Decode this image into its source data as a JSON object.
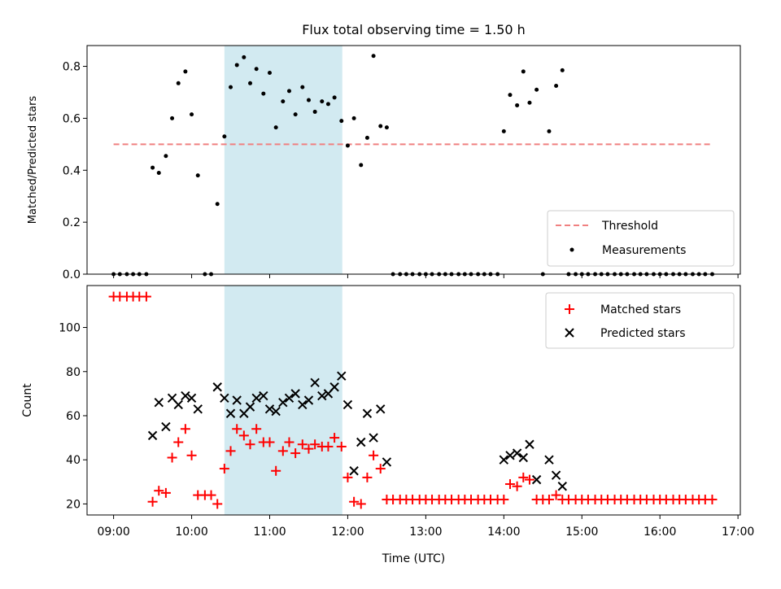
{
  "chart_data": [
    {
      "type": "scatter",
      "title": "Flux total observing time = 1.50 h",
      "xlabel": "",
      "ylabel": "Matched/Predicted stars",
      "xlim": [
        8.66,
        17.03
      ],
      "ylim": [
        0,
        0.88
      ],
      "yticks": [
        0.0,
        0.2,
        0.4,
        0.6,
        0.8
      ],
      "ytick_labels": [
        "0.0",
        "0.2",
        "0.4",
        "0.6",
        "0.8"
      ],
      "shaded_interval": [
        10.42,
        11.93
      ],
      "shade_color": "#add8e6",
      "threshold": {
        "name": "Threshold",
        "value": 0.5,
        "x_range": [
          9.0,
          16.67
        ],
        "color": "#f08080"
      },
      "legend": {
        "position": "lower right",
        "entries": [
          "Threshold",
          "Measurements"
        ]
      },
      "series": [
        {
          "name": "Measurements",
          "marker": "dot",
          "color": "#000000",
          "points": [
            [
              9.0,
              0
            ],
            [
              9.08,
              0
            ],
            [
              9.17,
              0
            ],
            [
              9.25,
              0
            ],
            [
              9.33,
              0
            ],
            [
              9.42,
              0
            ],
            [
              9.5,
              0.41
            ],
            [
              9.58,
              0.39
            ],
            [
              9.67,
              0.455
            ],
            [
              9.75,
              0.6
            ],
            [
              9.83,
              0.735
            ],
            [
              9.92,
              0.78
            ],
            [
              10.0,
              0.615
            ],
            [
              10.08,
              0.38
            ],
            [
              10.17,
              0
            ],
            [
              10.25,
              0
            ],
            [
              10.33,
              0.27
            ],
            [
              10.42,
              0.53
            ],
            [
              10.5,
              0.72
            ],
            [
              10.58,
              0.805
            ],
            [
              10.67,
              0.835
            ],
            [
              10.75,
              0.735
            ],
            [
              10.83,
              0.79
            ],
            [
              10.92,
              0.695
            ],
            [
              11.0,
              0.775
            ],
            [
              11.08,
              0.565
            ],
            [
              11.17,
              0.665
            ],
            [
              11.25,
              0.705
            ],
            [
              11.33,
              0.615
            ],
            [
              11.42,
              0.72
            ],
            [
              11.5,
              0.67
            ],
            [
              11.58,
              0.625
            ],
            [
              11.67,
              0.665
            ],
            [
              11.75,
              0.655
            ],
            [
              11.83,
              0.68
            ],
            [
              11.92,
              0.59
            ],
            [
              12.0,
              0.495
            ],
            [
              12.08,
              0.6
            ],
            [
              12.17,
              0.42
            ],
            [
              12.25,
              0.525
            ],
            [
              12.33,
              0.84
            ],
            [
              12.42,
              0.57
            ],
            [
              12.5,
              0.565
            ],
            [
              12.58,
              0
            ],
            [
              12.67,
              0
            ],
            [
              12.75,
              0
            ],
            [
              12.83,
              0
            ],
            [
              12.92,
              0
            ],
            [
              13.0,
              0
            ],
            [
              13.08,
              0
            ],
            [
              13.17,
              0
            ],
            [
              13.25,
              0
            ],
            [
              13.33,
              0
            ],
            [
              13.42,
              0
            ],
            [
              13.5,
              0
            ],
            [
              13.58,
              0
            ],
            [
              13.67,
              0
            ],
            [
              13.75,
              0
            ],
            [
              13.83,
              0
            ],
            [
              13.92,
              0
            ],
            [
              14.0,
              0.55
            ],
            [
              14.08,
              0.69
            ],
            [
              14.17,
              0.65
            ],
            [
              14.25,
              0.78
            ],
            [
              14.33,
              0.66
            ],
            [
              14.42,
              0.71
            ],
            [
              14.5,
              0
            ],
            [
              14.58,
              0.55
            ],
            [
              14.67,
              0.725
            ],
            [
              14.75,
              0.785
            ],
            [
              14.83,
              0
            ],
            [
              14.92,
              0
            ],
            [
              15.0,
              0
            ],
            [
              15.08,
              0
            ],
            [
              15.17,
              0
            ],
            [
              15.25,
              0
            ],
            [
              15.33,
              0
            ],
            [
              15.42,
              0
            ],
            [
              15.5,
              0
            ],
            [
              15.58,
              0
            ],
            [
              15.67,
              0
            ],
            [
              15.75,
              0
            ],
            [
              15.83,
              0
            ],
            [
              15.92,
              0
            ],
            [
              16.0,
              0
            ],
            [
              16.08,
              0
            ],
            [
              16.17,
              0
            ],
            [
              16.25,
              0
            ],
            [
              16.33,
              0
            ],
            [
              16.42,
              0
            ],
            [
              16.5,
              0
            ],
            [
              16.58,
              0
            ],
            [
              16.67,
              0
            ]
          ]
        }
      ]
    },
    {
      "type": "scatter",
      "title": "",
      "xlabel": "Time (UTC)",
      "ylabel": "Count",
      "xlim": [
        8.66,
        17.03
      ],
      "ylim": [
        15,
        119
      ],
      "xticks": [
        9,
        10,
        11,
        12,
        13,
        14,
        15,
        16,
        17
      ],
      "xtick_labels": [
        "09:00",
        "10:00",
        "11:00",
        "12:00",
        "13:00",
        "14:00",
        "15:00",
        "16:00",
        "17:00"
      ],
      "yticks": [
        20,
        40,
        60,
        80,
        100
      ],
      "ytick_labels": [
        "20",
        "40",
        "60",
        "80",
        "100"
      ],
      "shaded_interval": [
        10.42,
        11.93
      ],
      "shade_color": "#add8e6",
      "legend": {
        "position": "upper right",
        "entries": [
          "Matched stars",
          "Predicted stars"
        ]
      },
      "series": [
        {
          "name": "Matched stars",
          "marker": "plus",
          "color": "#ff0000",
          "points": [
            [
              9.0,
              114
            ],
            [
              9.08,
              114
            ],
            [
              9.17,
              114
            ],
            [
              9.25,
              114
            ],
            [
              9.33,
              114
            ],
            [
              9.42,
              114
            ],
            [
              9.5,
              21
            ],
            [
              9.58,
              26
            ],
            [
              9.67,
              25
            ],
            [
              9.75,
              41
            ],
            [
              9.83,
              48
            ],
            [
              9.92,
              54
            ],
            [
              10.0,
              42
            ],
            [
              10.08,
              24
            ],
            [
              10.17,
              24
            ],
            [
              10.25,
              24
            ],
            [
              10.33,
              20
            ],
            [
              10.42,
              36
            ],
            [
              10.5,
              44
            ],
            [
              10.58,
              54
            ],
            [
              10.67,
              51
            ],
            [
              10.75,
              47
            ],
            [
              10.83,
              54
            ],
            [
              10.92,
              48
            ],
            [
              11.0,
              48
            ],
            [
              11.08,
              35
            ],
            [
              11.17,
              44
            ],
            [
              11.25,
              48
            ],
            [
              11.33,
              43
            ],
            [
              11.42,
              47
            ],
            [
              11.5,
              45
            ],
            [
              11.58,
              47
            ],
            [
              11.67,
              46
            ],
            [
              11.75,
              46
            ],
            [
              11.83,
              50
            ],
            [
              11.92,
              46
            ],
            [
              12.0,
              32
            ],
            [
              12.08,
              21
            ],
            [
              12.17,
              20
            ],
            [
              12.25,
              32
            ],
            [
              12.33,
              42
            ],
            [
              12.42,
              36
            ],
            [
              12.5,
              22
            ],
            [
              12.58,
              22
            ],
            [
              12.67,
              22
            ],
            [
              12.75,
              22
            ],
            [
              12.83,
              22
            ],
            [
              12.92,
              22
            ],
            [
              13.0,
              22
            ],
            [
              13.08,
              22
            ],
            [
              13.17,
              22
            ],
            [
              13.25,
              22
            ],
            [
              13.33,
              22
            ],
            [
              13.42,
              22
            ],
            [
              13.5,
              22
            ],
            [
              13.58,
              22
            ],
            [
              13.67,
              22
            ],
            [
              13.75,
              22
            ],
            [
              13.83,
              22
            ],
            [
              13.92,
              22
            ],
            [
              14.0,
              22
            ],
            [
              14.08,
              29
            ],
            [
              14.17,
              28
            ],
            [
              14.25,
              32
            ],
            [
              14.33,
              31
            ],
            [
              14.42,
              22
            ],
            [
              14.5,
              22
            ],
            [
              14.58,
              22
            ],
            [
              14.67,
              24
            ],
            [
              14.75,
              22
            ],
            [
              14.83,
              22
            ],
            [
              14.92,
              22
            ],
            [
              15.0,
              22
            ],
            [
              15.08,
              22
            ],
            [
              15.17,
              22
            ],
            [
              15.25,
              22
            ],
            [
              15.33,
              22
            ],
            [
              15.42,
              22
            ],
            [
              15.5,
              22
            ],
            [
              15.58,
              22
            ],
            [
              15.67,
              22
            ],
            [
              15.75,
              22
            ],
            [
              15.83,
              22
            ],
            [
              15.92,
              22
            ],
            [
              16.0,
              22
            ],
            [
              16.08,
              22
            ],
            [
              16.17,
              22
            ],
            [
              16.25,
              22
            ],
            [
              16.33,
              22
            ],
            [
              16.42,
              22
            ],
            [
              16.5,
              22
            ],
            [
              16.58,
              22
            ],
            [
              16.67,
              22
            ]
          ]
        },
        {
          "name": "Predicted stars",
          "marker": "x",
          "color": "#000000",
          "points": [
            [
              9.5,
              51
            ],
            [
              9.58,
              66
            ],
            [
              9.67,
              55
            ],
            [
              9.75,
              68
            ],
            [
              9.83,
              65
            ],
            [
              9.92,
              69
            ],
            [
              10.0,
              68
            ],
            [
              10.08,
              63
            ],
            [
              10.33,
              73
            ],
            [
              10.42,
              68
            ],
            [
              10.5,
              61
            ],
            [
              10.58,
              67
            ],
            [
              10.67,
              61
            ],
            [
              10.75,
              64
            ],
            [
              10.83,
              68
            ],
            [
              10.92,
              69
            ],
            [
              11.0,
              63
            ],
            [
              11.08,
              62
            ],
            [
              11.17,
              66
            ],
            [
              11.25,
              68
            ],
            [
              11.33,
              70
            ],
            [
              11.42,
              65
            ],
            [
              11.5,
              67
            ],
            [
              11.58,
              75
            ],
            [
              11.67,
              69
            ],
            [
              11.75,
              70
            ],
            [
              11.83,
              73
            ],
            [
              11.92,
              78
            ],
            [
              12.0,
              65
            ],
            [
              12.08,
              35
            ],
            [
              12.17,
              48
            ],
            [
              12.25,
              61
            ],
            [
              12.33,
              50
            ],
            [
              12.42,
              63
            ],
            [
              12.5,
              39
            ],
            [
              14.0,
              40
            ],
            [
              14.08,
              42
            ],
            [
              14.17,
              43
            ],
            [
              14.25,
              41
            ],
            [
              14.33,
              47
            ],
            [
              14.42,
              31
            ],
            [
              14.58,
              40
            ],
            [
              14.67,
              33
            ],
            [
              14.75,
              28
            ]
          ]
        }
      ]
    }
  ]
}
